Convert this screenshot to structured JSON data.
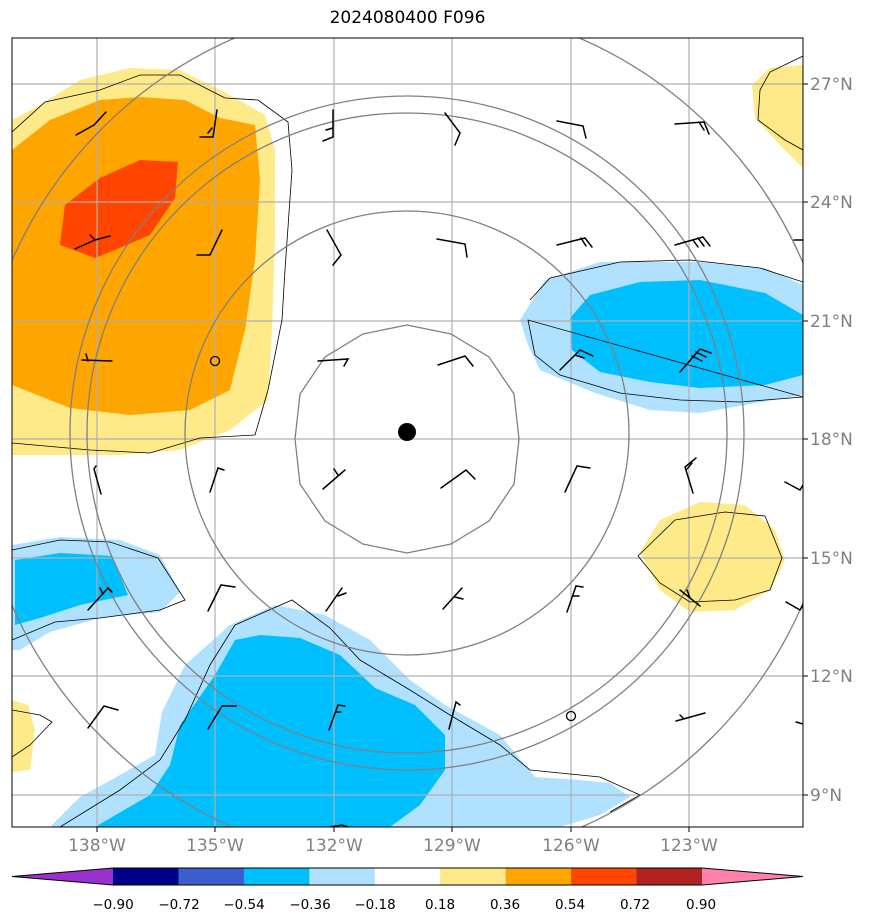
{
  "title": "2024080400 F096",
  "lat_labels": [
    "27°N",
    "24°N",
    "21°N",
    "18°N",
    "15°N",
    "12°N",
    "9°N"
  ],
  "lon_labels": [
    "138°W",
    "135°W",
    "132°W",
    "129°W",
    "126°W",
    "123°W"
  ],
  "colorbar": {
    "labels": [
      "−0.90",
      "−0.72",
      "−0.54",
      "−0.36",
      "−0.18",
      "0.18",
      "0.36",
      "0.54",
      "0.72",
      "0.90"
    ],
    "colors": [
      "#9932cc",
      "#00008b",
      "#3a5fcd",
      "#00bfff",
      "#b0e2ff",
      "#ffffff",
      "#ffea8a",
      "#ffa500",
      "#ff4500",
      "#b22222",
      "#ff82ab"
    ]
  },
  "colors": {
    "grid": "#b0b0b0",
    "range_rings": "#808080",
    "coast": "#000000",
    "storm_center": "#000000"
  },
  "storm_center_icon": "filled-circle-marker",
  "calm_icon": "open-circle-calm-wind"
}
